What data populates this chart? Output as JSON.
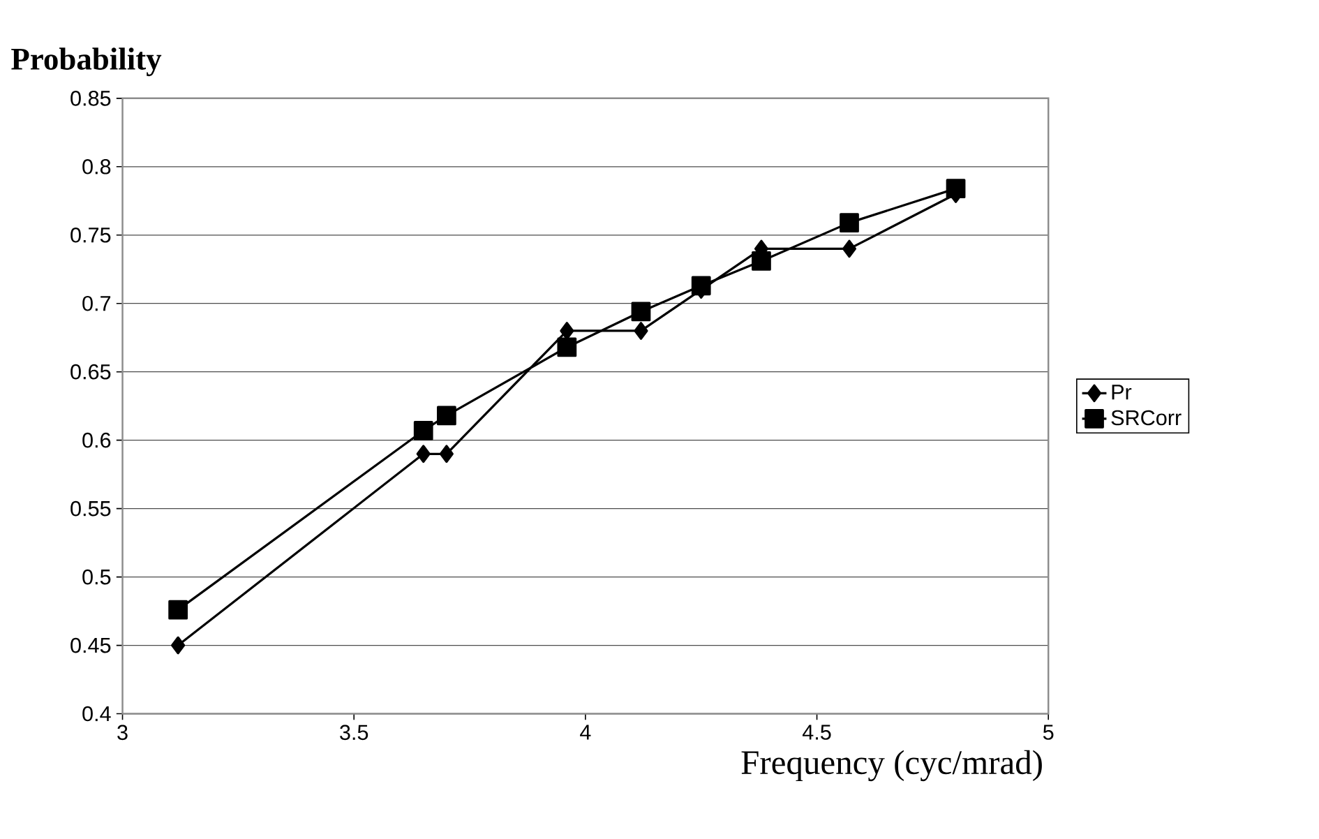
{
  "chart_data": {
    "type": "line",
    "title": "Probability",
    "xlabel": "Frequency (cyc/mrad)",
    "xlim": [
      3,
      5
    ],
    "xticks": [
      3,
      3.5,
      4,
      4.5,
      5
    ],
    "ylim": [
      0.4,
      0.85
    ],
    "yticks": [
      0.4,
      0.45,
      0.5,
      0.55,
      0.6,
      0.65,
      0.7,
      0.75,
      0.8,
      0.85
    ],
    "grid": "y",
    "legend": "right",
    "line_style": "solid",
    "series": [
      {
        "name": "Pr",
        "color": "#000000",
        "marker": "diamond",
        "x": [
          3.12,
          3.65,
          3.7,
          3.96,
          4.12,
          4.25,
          4.38,
          4.57,
          4.8
        ],
        "values": [
          0.45,
          0.59,
          0.59,
          0.68,
          0.68,
          0.71,
          0.74,
          0.74,
          0.78
        ]
      },
      {
        "name": "SRCorr",
        "color": "#000000",
        "marker": "square",
        "x": [
          3.12,
          3.65,
          3.7,
          3.96,
          4.12,
          4.25,
          4.38,
          4.57,
          4.8
        ],
        "values": [
          0.476,
          0.607,
          0.618,
          0.668,
          0.694,
          0.713,
          0.731,
          0.759,
          0.784
        ]
      }
    ]
  }
}
